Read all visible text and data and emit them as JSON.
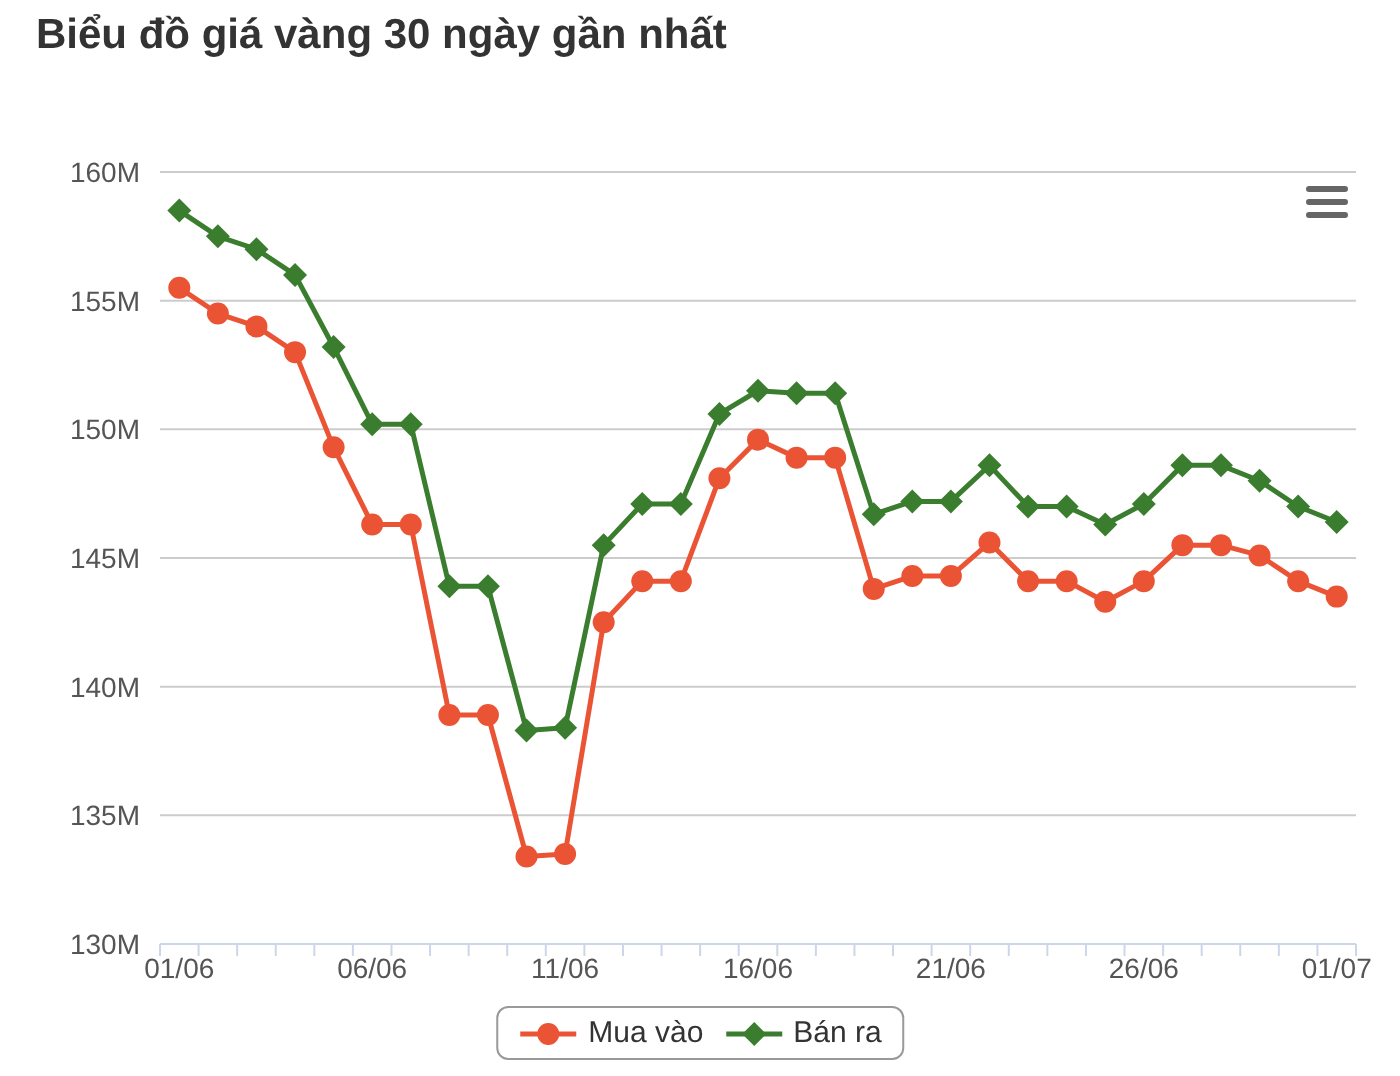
{
  "chart_data": {
    "type": "line",
    "title": "Biểu đồ giá vàng 30 ngày gần nhất",
    "categories": [
      "01/06",
      null,
      null,
      null,
      null,
      "06/06",
      null,
      null,
      null,
      null,
      "11/06",
      null,
      null,
      null,
      null,
      "16/06",
      null,
      null,
      null,
      null,
      "21/06",
      null,
      null,
      null,
      null,
      "26/06",
      null,
      null,
      null,
      null,
      "01/07"
    ],
    "series": [
      {
        "name": "Mua vào",
        "color": "#ea5435",
        "marker": "circle",
        "values": [
          155.5,
          154.5,
          154.0,
          153.0,
          149.3,
          146.3,
          146.3,
          138.9,
          138.9,
          133.4,
          133.5,
          142.5,
          144.1,
          144.1,
          148.1,
          149.6,
          148.9,
          148.9,
          143.8,
          144.3,
          144.3,
          145.6,
          144.1,
          144.1,
          143.3,
          144.1,
          145.5,
          145.5,
          145.1,
          144.1,
          143.5
        ]
      },
      {
        "name": "Bán ra",
        "color": "#3b7d2f",
        "marker": "diamond",
        "values": [
          158.5,
          157.5,
          157.0,
          156.0,
          153.2,
          150.2,
          150.2,
          143.9,
          143.9,
          138.3,
          138.4,
          145.5,
          147.1,
          147.1,
          150.6,
          151.5,
          151.4,
          151.4,
          146.7,
          147.2,
          147.2,
          148.6,
          147.0,
          147.0,
          146.3,
          147.1,
          148.6,
          148.6,
          148.0,
          147.0,
          146.4
        ]
      }
    ],
    "ylim": [
      130,
      160
    ],
    "yticks": [
      {
        "value": 130,
        "label": "130M"
      },
      {
        "value": 135,
        "label": "135M"
      },
      {
        "value": 140,
        "label": "140M"
      },
      {
        "value": 145,
        "label": "145M"
      },
      {
        "value": 150,
        "label": "150M"
      },
      {
        "value": 155,
        "label": "155M"
      },
      {
        "value": 160,
        "label": "160M"
      }
    ],
    "grid": "y",
    "legend": "bottom"
  }
}
